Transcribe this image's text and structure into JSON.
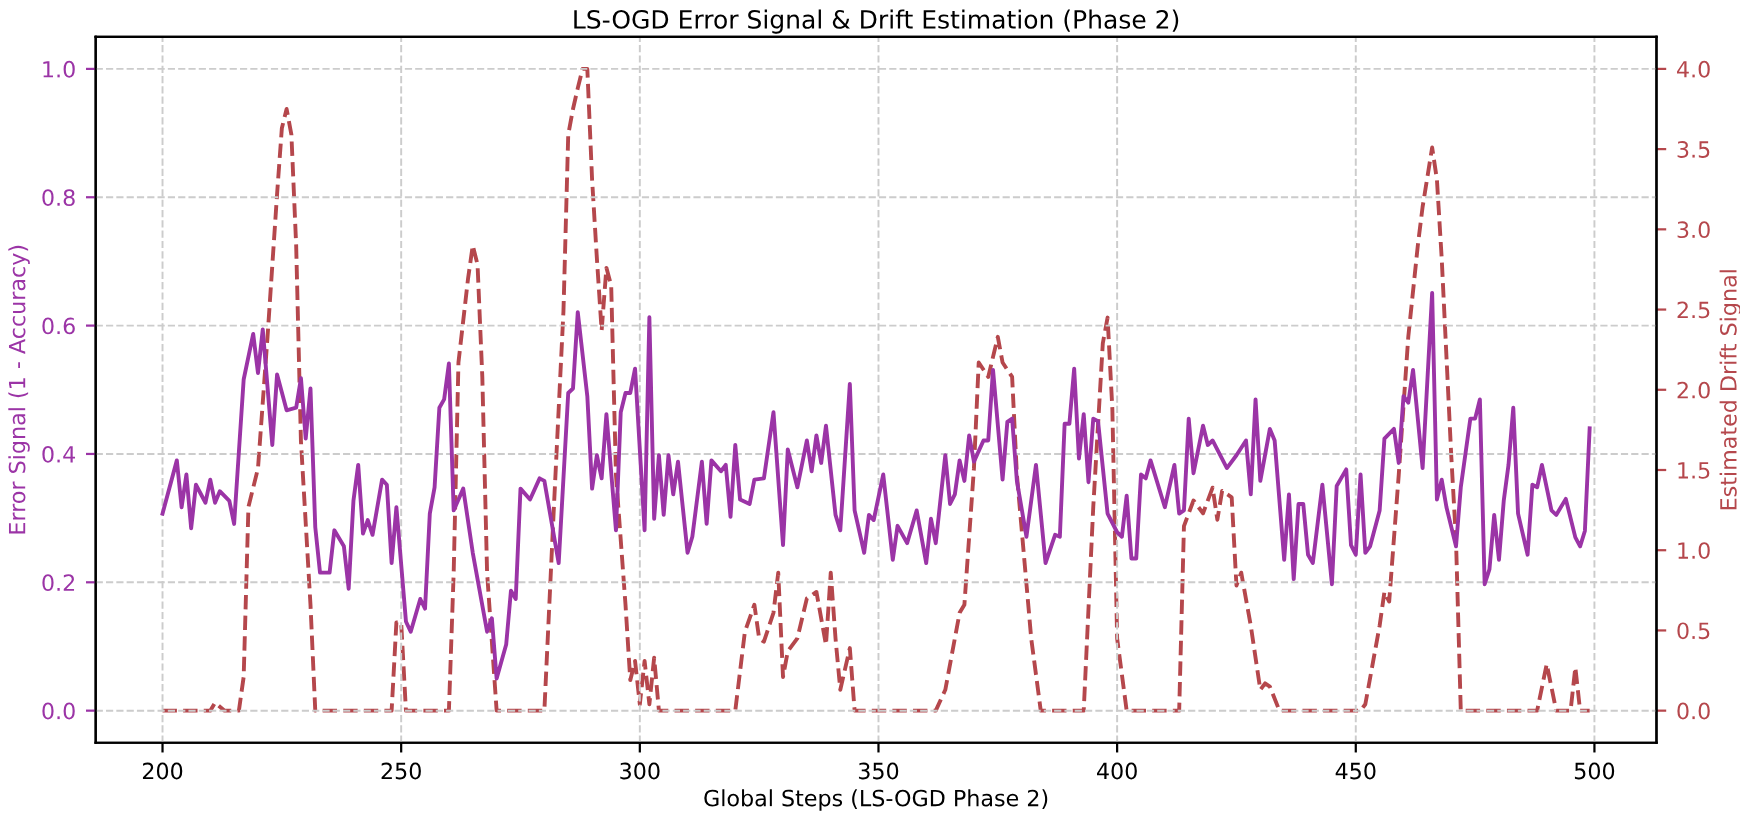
{
  "chart_data": {
    "type": "line",
    "title": "LS-OGD Error Signal & Drift Estimation (Phase 2)",
    "xlabel": "Global Steps (LS-OGD Phase 2)",
    "ylabel": "Error Signal (1 - Accuracy)",
    "y2label": "Estimated Drift Signal",
    "xlim": [
      186,
      513
    ],
    "xticks": [
      200,
      250,
      300,
      350,
      400,
      450,
      500
    ],
    "ylim": [
      -0.05,
      1.05
    ],
    "yticks": [
      {
        "value": 0,
        "label": "0.0"
      },
      0.2,
      0.4,
      0.6,
      0.8,
      {
        "value": 1,
        "label": "1.0"
      }
    ],
    "y2lim": [
      -0.2,
      4.2
    ],
    "y2ticks": [
      {
        "value": 0,
        "label": "0.0"
      },
      0.5,
      {
        "value": 1,
        "label": "1.0"
      },
      1.5,
      {
        "value": 2,
        "label": "2.0"
      },
      2.5,
      {
        "value": 3,
        "label": "3.0"
      },
      3.5,
      {
        "value": 4,
        "label": "4.0"
      }
    ],
    "grid": true,
    "legend": false,
    "series": [
      {
        "color": "#9b34a6",
        "line_style": "solid",
        "x": [
          200,
          203,
          204,
          205,
          206,
          207,
          209,
          210,
          211,
          212,
          214,
          215,
          217,
          219,
          220,
          221,
          223,
          224,
          226,
          228,
          229,
          230,
          231,
          232,
          233,
          235,
          236,
          238,
          239,
          240,
          241,
          242,
          243,
          244,
          246,
          247,
          248,
          249,
          251,
          252,
          254,
          255,
          256,
          257,
          258,
          259,
          260,
          261,
          263,
          265,
          268,
          269,
          270,
          272,
          273,
          274,
          275,
          277,
          279,
          280,
          283,
          285,
          286,
          287,
          289,
          290,
          291,
          292,
          293,
          295,
          296,
          297,
          298,
          299,
          301,
          302,
          303,
          304,
          305,
          306,
          307,
          308,
          310,
          311,
          313,
          314,
          315,
          317,
          318,
          319,
          320,
          321,
          323,
          324,
          326,
          328,
          330,
          331,
          333,
          335,
          336,
          337,
          338,
          339,
          341,
          342,
          344,
          345,
          347,
          348,
          349,
          351,
          353,
          354,
          356,
          358,
          360,
          361,
          362,
          364,
          365,
          366,
          367,
          368,
          369,
          370,
          372,
          373,
          374,
          376,
          377,
          378,
          379,
          381,
          383,
          385,
          387,
          388,
          389,
          390,
          391,
          392,
          393,
          394,
          395,
          396,
          398,
          400,
          401,
          402,
          403,
          404,
          405,
          406,
          407,
          410,
          412,
          413,
          414,
          415,
          416,
          418,
          419,
          420,
          423,
          425,
          427,
          428,
          429,
          430,
          432,
          433,
          435,
          436,
          437,
          438,
          439,
          440,
          441,
          443,
          445,
          446,
          448,
          449,
          450,
          451,
          452,
          453,
          455,
          456,
          458,
          459,
          460,
          461,
          462,
          464,
          466,
          467,
          468,
          469,
          471,
          472,
          474,
          475,
          476,
          477,
          478,
          479,
          480,
          481,
          482,
          483,
          484,
          486,
          487,
          488,
          489,
          491,
          492,
          494,
          496,
          497,
          498,
          499
        ],
        "values": [
          0.307,
          0.39,
          0.317,
          0.368,
          0.284,
          0.352,
          0.324,
          0.36,
          0.324,
          0.342,
          0.327,
          0.291,
          0.516,
          0.587,
          0.526,
          0.594,
          0.414,
          0.524,
          0.468,
          0.472,
          0.518,
          0.424,
          0.502,
          0.286,
          0.215,
          0.215,
          0.281,
          0.256,
          0.19,
          0.327,
          0.383,
          0.276,
          0.297,
          0.274,
          0.36,
          0.352,
          0.23,
          0.317,
          0.139,
          0.123,
          0.174,
          0.159,
          0.307,
          0.348,
          0.472,
          0.485,
          0.541,
          0.312,
          0.346,
          0.246,
          0.123,
          0.144,
          0.05,
          0.103,
          0.187,
          0.174,
          0.346,
          0.329,
          0.362,
          0.358,
          0.23,
          0.495,
          0.502,
          0.621,
          0.49,
          0.346,
          0.398,
          0.362,
          0.462,
          0.281,
          0.465,
          0.495,
          0.495,
          0.533,
          0.281,
          0.613,
          0.299,
          0.398,
          0.305,
          0.398,
          0.337,
          0.388,
          0.246,
          0.271,
          0.388,
          0.291,
          0.39,
          0.373,
          0.383,
          0.302,
          0.414,
          0.329,
          0.322,
          0.36,
          0.362,
          0.465,
          0.258,
          0.407,
          0.348,
          0.421,
          0.373,
          0.429,
          0.386,
          0.444,
          0.305,
          0.281,
          0.509,
          0.312,
          0.246,
          0.305,
          0.297,
          0.368,
          0.235,
          0.288,
          0.261,
          0.312,
          0.23,
          0.299,
          0.261,
          0.398,
          0.322,
          0.337,
          0.39,
          0.358,
          0.429,
          0.388,
          0.421,
          0.421,
          0.531,
          0.36,
          0.45,
          0.455,
          0.358,
          0.271,
          0.383,
          0.23,
          0.274,
          0.271,
          0.447,
          0.447,
          0.533,
          0.393,
          0.462,
          0.356,
          0.455,
          0.451,
          0.307,
          0.278,
          0.271,
          0.335,
          0.237,
          0.237,
          0.368,
          0.362,
          0.39,
          0.317,
          0.383,
          0.307,
          0.312,
          0.455,
          0.37,
          0.444,
          0.414,
          0.421,
          0.378,
          0.398,
          0.421,
          0.337,
          0.485,
          0.358,
          0.439,
          0.421,
          0.235,
          0.337,
          0.205,
          0.322,
          0.322,
          0.243,
          0.23,
          0.352,
          0.197,
          0.35,
          0.376,
          0.258,
          0.243,
          0.368,
          0.246,
          0.256,
          0.312,
          0.424,
          0.439,
          0.386,
          0.49,
          0.48,
          0.531,
          0.378,
          0.651,
          0.329,
          0.36,
          0.317,
          0.256,
          0.348,
          0.455,
          0.455,
          0.485,
          0.197,
          0.22,
          0.305,
          0.235,
          0.327,
          0.383,
          0.472,
          0.307,
          0.243,
          0.352,
          0.348,
          0.383,
          0.312,
          0.305,
          0.33,
          0.27,
          0.256,
          0.28,
          0.44
        ]
      },
      {
        "color": "#b5474c",
        "line_style": "dashed",
        "axis": "y2",
        "x": [
          200,
          210,
          211,
          213,
          216,
          217,
          218,
          220,
          222,
          224,
          225,
          226,
          227,
          228,
          229,
          231,
          232,
          248,
          249,
          250,
          251,
          260,
          261,
          262,
          264,
          265,
          266,
          267,
          268,
          270,
          271,
          280,
          282,
          284,
          285,
          286,
          287,
          288,
          289,
          290,
          291,
          292,
          293,
          294,
          295,
          297,
          298,
          299,
          300,
          301,
          302,
          303,
          304,
          320,
          322,
          324,
          325,
          326,
          328,
          329,
          330,
          331,
          333,
          335,
          337,
          339,
          340,
          341,
          342,
          344,
          345,
          353,
          362,
          364,
          367,
          368,
          370,
          371,
          373,
          375,
          376,
          378,
          379,
          382,
          384,
          393,
          395,
          397,
          398,
          399,
          400,
          402,
          413,
          414,
          416,
          418,
          420,
          421,
          422,
          424,
          425,
          426,
          428,
          430,
          431,
          432,
          434,
          451,
          452,
          455,
          456,
          457,
          459,
          461,
          463,
          464,
          466,
          467,
          468,
          470,
          471,
          472,
          488,
          490,
          492,
          495,
          496,
          497,
          499
        ],
        "values": [
          0,
          0,
          0.05,
          0,
          0,
          0.21,
          1.27,
          1.51,
          2.33,
          3.22,
          3.63,
          3.75,
          3.59,
          2.9,
          1.68,
          0.66,
          0,
          0,
          0.55,
          0.55,
          0,
          0,
          0.86,
          2.17,
          2.69,
          2.9,
          2.78,
          2.08,
          0.86,
          0,
          0,
          0,
          1.27,
          2.49,
          3.59,
          3.75,
          3.88,
          4.0,
          4.0,
          3.31,
          2.82,
          2.37,
          2.76,
          2.65,
          1.47,
          0.66,
          0.19,
          0.31,
          0.04,
          0.31,
          0.04,
          0.33,
          0,
          0,
          0.49,
          0.66,
          0.45,
          0.43,
          0.61,
          0.86,
          0.21,
          0.37,
          0.45,
          0.7,
          0.74,
          0.41,
          0.86,
          0.45,
          0.13,
          0.39,
          0,
          0,
          0,
          0.13,
          0.61,
          0.66,
          1.51,
          2.17,
          2.08,
          2.33,
          2.17,
          2.08,
          1.47,
          0.45,
          0,
          0,
          1.27,
          2.29,
          2.45,
          1.88,
          0.45,
          0,
          0,
          1.15,
          1.31,
          1.23,
          1.39,
          1.19,
          1.37,
          1.33,
          0.78,
          0.86,
          0.53,
          0.13,
          0.17,
          0.15,
          0,
          0,
          0.04,
          0.53,
          0.74,
          0.68,
          1.47,
          2.33,
          2.9,
          3.14,
          3.51,
          3.31,
          2.82,
          1.59,
          1.06,
          0,
          0,
          0.29,
          0,
          0,
          0.27,
          0,
          0
        ]
      }
    ]
  }
}
